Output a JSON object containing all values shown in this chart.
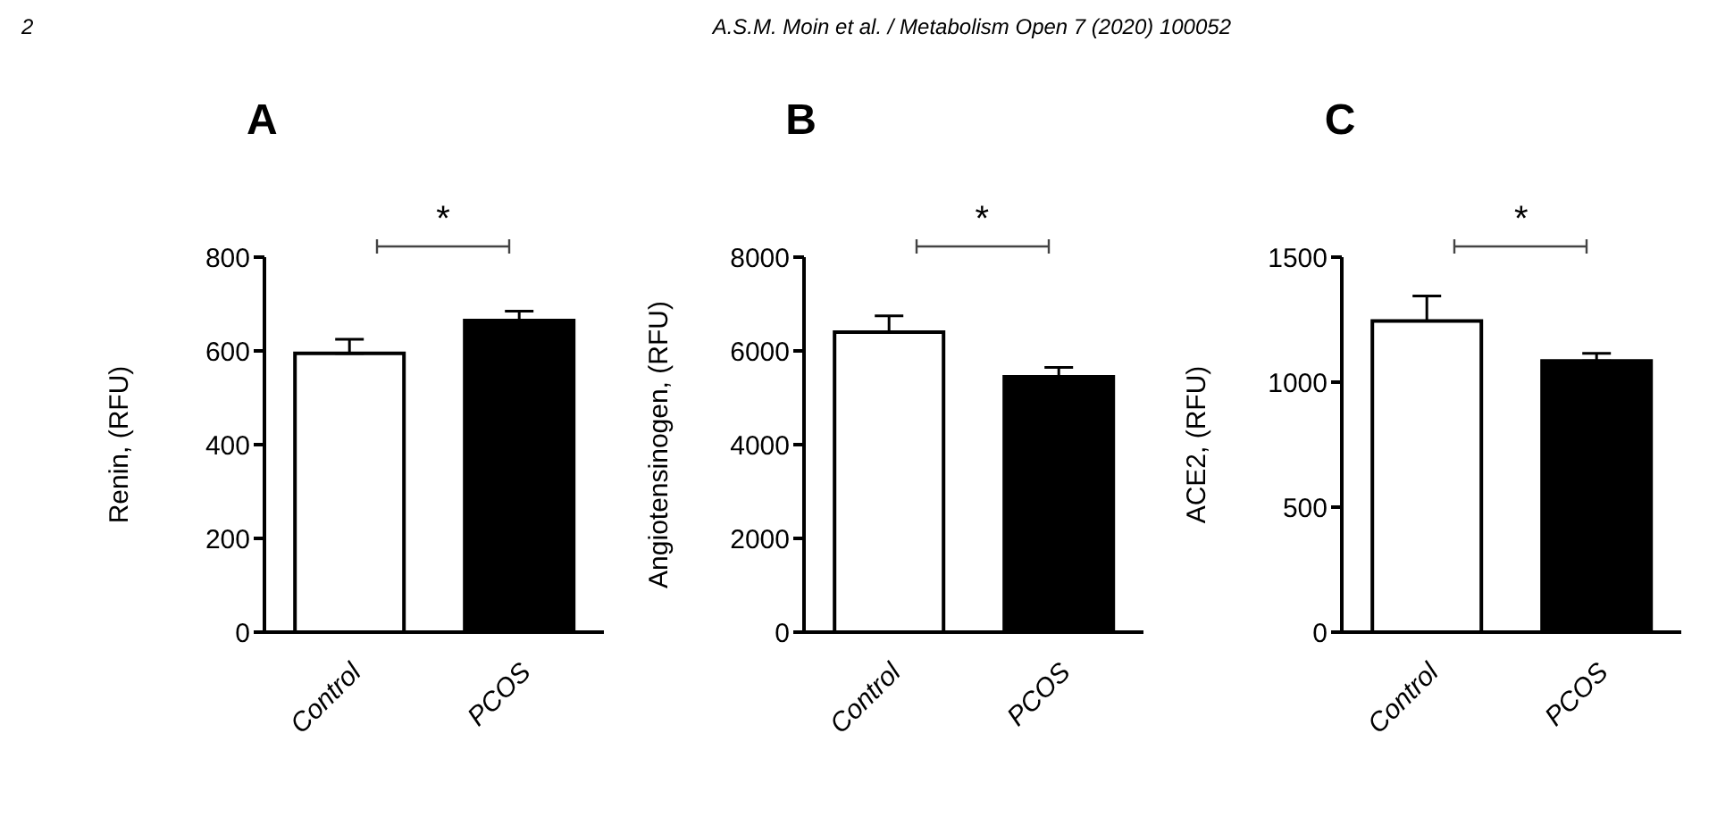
{
  "chart_data": [
    {
      "type": "bar",
      "title": "A",
      "ylabel": "Renin, (RFU)",
      "categories": [
        "Control",
        "PCOS"
      ],
      "values": [
        595,
        665
      ],
      "colors": [
        "#ffffff",
        "#000000"
      ],
      "errors": [
        [
          595,
          625
        ],
        [
          665,
          685
        ]
      ],
      "ylim": [
        0,
        800
      ],
      "yticks": [
        0,
        200,
        400,
        600,
        800
      ],
      "annotations": [
        "2",
        "A.S.M. Moin et al. / Metabolism Open 7 (2020) 100052",
        "*"
      ]
    },
    {
      "type": "bar",
      "title": "B",
      "ylabel": "Angiotensinogen, (RFU)",
      "categories": [
        "Control",
        "PCOS"
      ],
      "values": [
        6400,
        5450
      ],
      "colors": [
        "#ffffff",
        "#000000"
      ],
      "errors": [
        [
          6400,
          6750
        ],
        [
          5450,
          5650
        ]
      ],
      "ylim": [
        0,
        8000
      ],
      "yticks": [
        0,
        2000,
        4000,
        6000,
        8000
      ],
      "annotations": [
        "*"
      ]
    },
    {
      "type": "bar",
      "title": "C",
      "ylabel": "ACE2, (RFU)",
      "categories": [
        "Control",
        "PCOS"
      ],
      "values": [
        1245,
        1085
      ],
      "colors": [
        "#ffffff",
        "#000000"
      ],
      "errors": [
        [
          1245,
          1345
        ],
        [
          1085,
          1115
        ]
      ],
      "ylim": [
        0,
        1500
      ],
      "yticks": [
        0,
        500,
        1000,
        1500
      ],
      "annotations": [
        "*"
      ]
    }
  ]
}
